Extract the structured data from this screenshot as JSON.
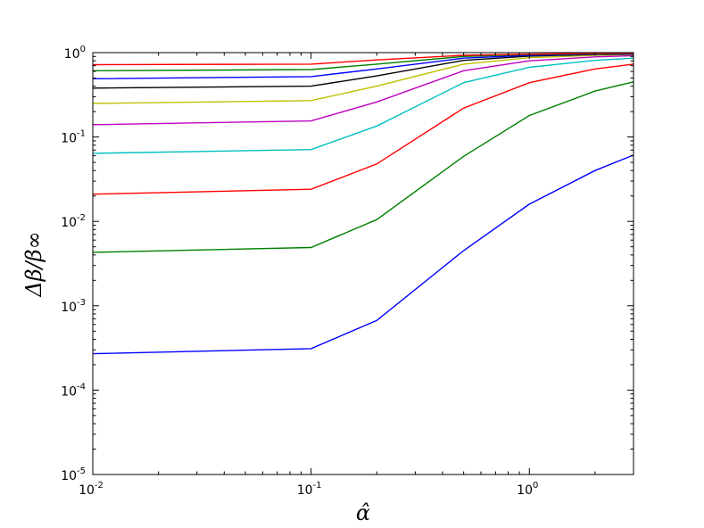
{
  "chart_data": {
    "type": "line",
    "xscale": "log",
    "yscale": "log",
    "xlim": [
      0.01,
      3.0
    ],
    "ylim": [
      1e-05,
      1.0
    ],
    "xlabel": "α̂",
    "ylabel": "Δβ/β∞",
    "grid": false,
    "legend": "none",
    "x_ticks": [
      {
        "value": 0.01,
        "base": "10",
        "exp": "-2"
      },
      {
        "value": 0.1,
        "base": "10",
        "exp": "-1"
      },
      {
        "value": 1,
        "base": "10",
        "exp": "0"
      }
    ],
    "y_ticks": [
      {
        "value": 1e-05,
        "base": "10",
        "exp": "-5"
      },
      {
        "value": 0.0001,
        "base": "10",
        "exp": "-4"
      },
      {
        "value": 0.001,
        "base": "10",
        "exp": "-3"
      },
      {
        "value": 0.01,
        "base": "10",
        "exp": "-2"
      },
      {
        "value": 0.1,
        "base": "10",
        "exp": "-1"
      },
      {
        "value": 1,
        "base": "10",
        "exp": "0"
      }
    ],
    "x": [
      0.01,
      0.1,
      0.2,
      0.5,
      1.0,
      2.0,
      3.0
    ],
    "series": [
      {
        "color": "#0000ff",
        "values": [
          0.00027,
          0.00031,
          0.00067,
          0.0045,
          0.016,
          0.04,
          0.061
        ]
      },
      {
        "color": "#008000",
        "values": [
          0.0043,
          0.0049,
          0.0105,
          0.059,
          0.18,
          0.35,
          0.45
        ]
      },
      {
        "color": "#ff0000",
        "values": [
          0.021,
          0.024,
          0.048,
          0.22,
          0.44,
          0.64,
          0.73
        ]
      },
      {
        "color": "#00bfbf",
        "values": [
          0.064,
          0.071,
          0.135,
          0.44,
          0.67,
          0.81,
          0.86
        ]
      },
      {
        "color": "#bf00bf",
        "values": [
          0.14,
          0.155,
          0.26,
          0.61,
          0.8,
          0.89,
          0.92
        ]
      },
      {
        "color": "#bfbf00",
        "values": [
          0.25,
          0.27,
          0.4,
          0.73,
          0.87,
          0.93,
          0.95
        ]
      },
      {
        "color": "#000000",
        "values": [
          0.38,
          0.4,
          0.53,
          0.81,
          0.91,
          0.95,
          0.96
        ]
      },
      {
        "color": "#0000ff",
        "values": [
          0.49,
          0.52,
          0.64,
          0.86,
          0.93,
          0.96,
          0.97
        ]
      },
      {
        "color": "#008000",
        "values": [
          0.61,
          0.63,
          0.73,
          0.9,
          0.95,
          0.97,
          0.98
        ]
      },
      {
        "color": "#ff0000",
        "values": [
          0.72,
          0.73,
          0.82,
          0.93,
          0.96,
          0.98,
          0.985
        ]
      }
    ]
  }
}
